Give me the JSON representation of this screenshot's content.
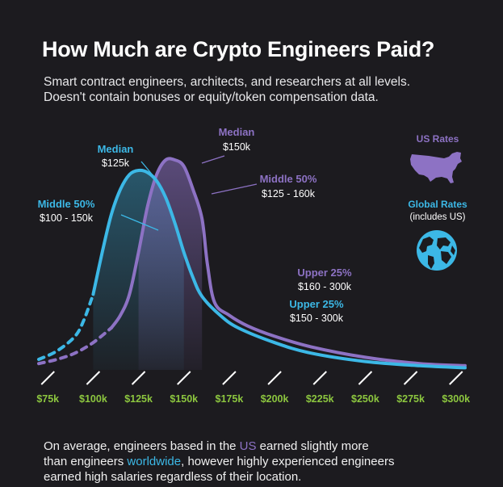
{
  "header": {
    "title": "How Much are Crypto Engineers Paid?",
    "subtitle_line1": "Smart contract engineers, architects, and researchers at all levels.",
    "subtitle_line2": "Doesn't contain bonuses or equity/token compensation data."
  },
  "colors": {
    "background": "#1c1b1f",
    "us": "#8d72c4",
    "global": "#3cb8e6",
    "tick_label": "#8cc63f",
    "text": "#ffffff"
  },
  "chart_data": {
    "type": "area",
    "title": "How Much are Crypto Engineers Paid?",
    "xlabel": "",
    "ylabel": "",
    "categories": [
      "$75k",
      "$100k",
      "$125k",
      "$150k",
      "$175k",
      "$200k",
      "$225k",
      "$250k",
      "$275k",
      "$300k"
    ],
    "x": [
      75,
      100,
      125,
      150,
      175,
      200,
      225,
      250,
      275,
      300
    ],
    "xlim": [
      70,
      305
    ],
    "ylim": [
      0,
      1
    ],
    "grid": false,
    "series": [
      {
        "name": "Global Rates",
        "color": "#3cb8e6",
        "median_k": 125,
        "middle_50_k": [
          100,
          150
        ],
        "x": [
          70,
          80,
          90,
          95,
          100,
          105,
          110,
          115,
          120,
          125,
          130,
          135,
          140,
          145,
          150,
          155,
          160,
          170,
          180,
          200,
          220,
          250,
          280,
          305
        ],
        "y": [
          0.05,
          0.09,
          0.16,
          0.24,
          0.36,
          0.56,
          0.74,
          0.86,
          0.93,
          0.95,
          0.94,
          0.9,
          0.82,
          0.7,
          0.56,
          0.44,
          0.35,
          0.26,
          0.2,
          0.13,
          0.08,
          0.04,
          0.02,
          0.01
        ],
        "dashed_until": 100
      },
      {
        "name": "US Rates",
        "color": "#8d72c4",
        "median_k": 150,
        "middle_50_k": [
          125,
          160
        ],
        "x": [
          70,
          80,
          90,
          100,
          110,
          115,
          120,
          125,
          130,
          135,
          140,
          145,
          150,
          155,
          160,
          163,
          167,
          175,
          185,
          200,
          220,
          250,
          280,
          305
        ],
        "y": [
          0.03,
          0.05,
          0.08,
          0.13,
          0.2,
          0.26,
          0.36,
          0.56,
          0.78,
          0.93,
          1.0,
          1.0,
          0.97,
          0.86,
          0.72,
          0.5,
          0.32,
          0.26,
          0.21,
          0.16,
          0.11,
          0.06,
          0.03,
          0.02
        ],
        "dashed_until": 110
      }
    ],
    "annotations": {
      "global_median_title": "Median",
      "global_median_value": "$125k",
      "global_middle_title": "Middle 50%",
      "global_middle_value": "$100 - 150k",
      "global_upper_title": "Upper 25%",
      "global_upper_value": "$150 - 300k",
      "us_median_title": "Median",
      "us_median_value": "$150k",
      "us_middle_title": "Middle 50%",
      "us_middle_value": "$125 - 160k",
      "us_upper_title": "Upper 25%",
      "us_upper_value": "$160 - 300k"
    }
  },
  "legend": {
    "us_title": "US Rates",
    "us_icon": "usa-map-icon",
    "global_title": "Global Rates",
    "global_note": "(includes US)",
    "global_icon": "globe-icon"
  },
  "footer": {
    "part1": "On average, engineers based in the ",
    "us_word": "US",
    "part2": " earned slightly more",
    "part3": "than engineers ",
    "ww_word": "worldwide",
    "part4": ", however highly experienced engineers",
    "part5": "earned high salaries regardless of their location."
  }
}
